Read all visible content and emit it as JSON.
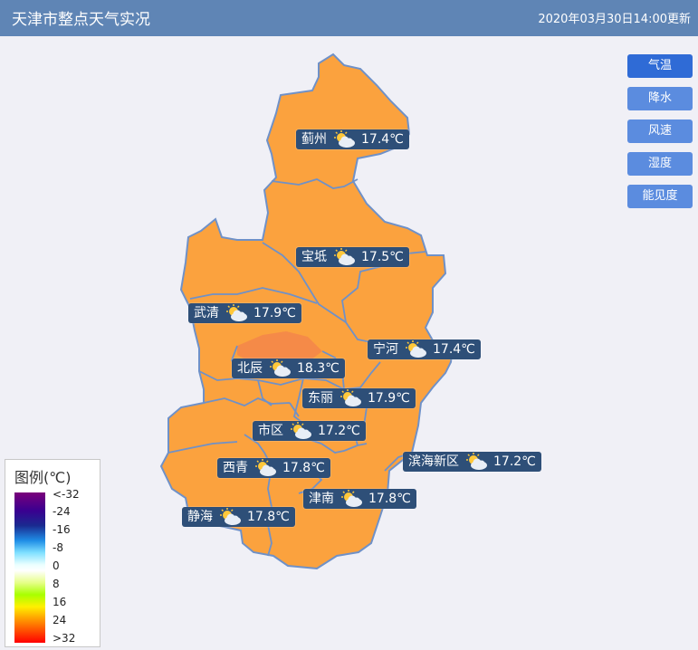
{
  "header": {
    "title": "天津市整点天气实况",
    "time": "2020年03月30日14:00更新"
  },
  "buttons": [
    {
      "label": "气温",
      "active": true
    },
    {
      "label": "降水",
      "active": false
    },
    {
      "label": "风速",
      "active": false
    },
    {
      "label": "湿度",
      "active": false
    },
    {
      "label": "能见度",
      "active": false
    }
  ],
  "stations": [
    {
      "name": "蓟州",
      "temp": "17.4℃",
      "icon": "partly-cloudy-icon"
    },
    {
      "name": "宝坻",
      "temp": "17.5℃",
      "icon": "partly-cloudy-icon"
    },
    {
      "name": "武清",
      "temp": "17.9℃",
      "icon": "partly-cloudy-icon"
    },
    {
      "name": "宁河",
      "temp": "17.4℃",
      "icon": "partly-cloudy-icon"
    },
    {
      "name": "北辰",
      "temp": "18.3℃",
      "icon": "partly-cloudy-icon"
    },
    {
      "name": "东丽",
      "temp": "17.9℃",
      "icon": "partly-cloudy-icon"
    },
    {
      "name": "市区",
      "temp": "17.2℃",
      "icon": "partly-cloudy-icon"
    },
    {
      "name": "西青",
      "temp": "17.8℃",
      "icon": "partly-cloudy-icon"
    },
    {
      "name": "滨海新区",
      "temp": "17.2℃",
      "icon": "partly-cloudy-icon"
    },
    {
      "name": "津南",
      "temp": "17.8℃",
      "icon": "partly-cloudy-icon"
    },
    {
      "name": "静海",
      "temp": "17.8℃",
      "icon": "partly-cloudy-icon"
    }
  ],
  "legend": {
    "title": "图例(℃)",
    "ticks": [
      "<-32",
      "-24",
      "-16",
      "-8",
      "0",
      "8",
      "16",
      "24",
      ">32"
    ]
  },
  "colors": {
    "region_fill": "#fba23e",
    "region_highlight": "#f58a48",
    "border": "#6f91c8",
    "label_bg": "#2e4f78"
  }
}
